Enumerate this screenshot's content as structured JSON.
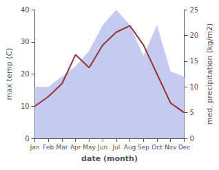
{
  "chart_data": {
    "type": "line",
    "categories": [
      "Jan",
      "Feb",
      "Mar",
      "Apr",
      "May",
      "Jun",
      "Jul",
      "Aug",
      "Sep",
      "Oct",
      "Nov",
      "Dec"
    ],
    "xlabel": "date (month)",
    "ylabel": "max temp (C)",
    "y2label": "med. precipitation (kg/m2)",
    "ylim": [
      0,
      40
    ],
    "yticks": [
      0,
      10,
      20,
      30,
      40
    ],
    "y2lim": [
      0,
      25
    ],
    "y2ticks": [
      0,
      5,
      10,
      15,
      20,
      25
    ],
    "grid": false,
    "series": [
      {
        "type": "area",
        "axis": "y2",
        "color": "#c5caf0",
        "values": [
          10,
          10,
          12,
          14,
          17,
          22,
          25,
          22,
          16,
          22,
          13,
          12
        ]
      },
      {
        "type": "line",
        "color": "#993333",
        "values": [
          10,
          13,
          17,
          26,
          22,
          29,
          33,
          35,
          29,
          20,
          11,
          8
        ]
      }
    ]
  }
}
